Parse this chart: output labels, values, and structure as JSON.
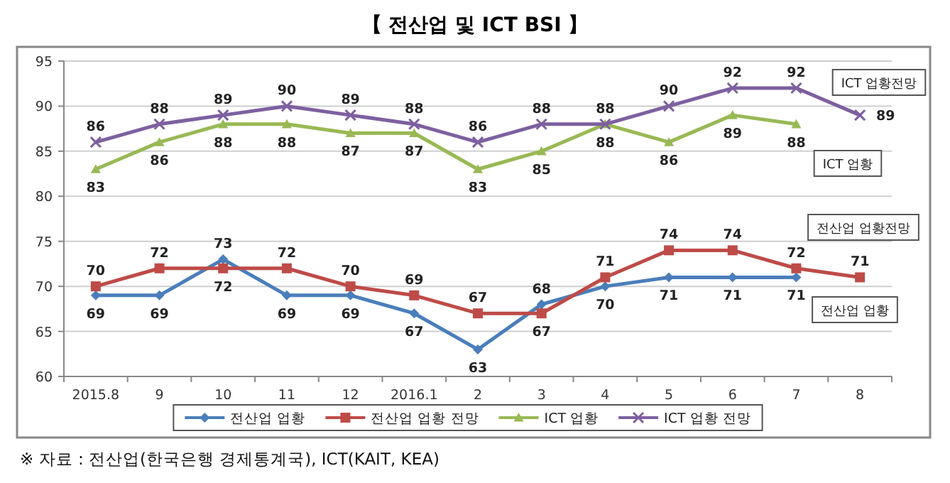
{
  "chart_data": {
    "type": "line",
    "title": "【 전산업 및 ICT BSI 】",
    "categories": [
      "2015.8",
      "9",
      "10",
      "11",
      "12",
      "2016.1",
      "2",
      "3",
      "4",
      "5",
      "6",
      "7",
      "8"
    ],
    "series": [
      {
        "name": "전산업 업황",
        "color": "#4a7ebb",
        "marker": "diamond",
        "values": [
          69,
          69,
          73,
          69,
          69,
          67,
          63,
          68,
          70,
          71,
          71,
          71,
          null
        ]
      },
      {
        "name": "전산업 업황 전망",
        "color": "#be4b48",
        "marker": "square",
        "values": [
          70,
          72,
          72,
          72,
          70,
          69,
          67,
          67,
          71,
          74,
          74,
          72,
          71
        ]
      },
      {
        "name": "ICT 업황",
        "color": "#98b954",
        "marker": "triangle",
        "values": [
          83,
          86,
          88,
          88,
          87,
          87,
          83,
          85,
          88,
          86,
          89,
          88,
          null
        ]
      },
      {
        "name": "ICT 업황 전망",
        "color": "#7d60a0",
        "marker": "cross",
        "values": [
          86,
          88,
          89,
          90,
          89,
          88,
          86,
          88,
          88,
          90,
          92,
          92,
          89
        ]
      }
    ],
    "ylim": [
      60,
      95
    ],
    "yticks": [
      60,
      65,
      70,
      75,
      80,
      85,
      90,
      95
    ],
    "grid": "y",
    "legend": "bottom",
    "data_labels": true,
    "annotations": [
      "ICT 업황전망",
      "ICT 업황",
      "전산업 업황전망",
      "전산업 업황",
      "※ 자료 : 전산업(한국은행 경제통계국), ICT(KAIT, KEA)"
    ]
  }
}
